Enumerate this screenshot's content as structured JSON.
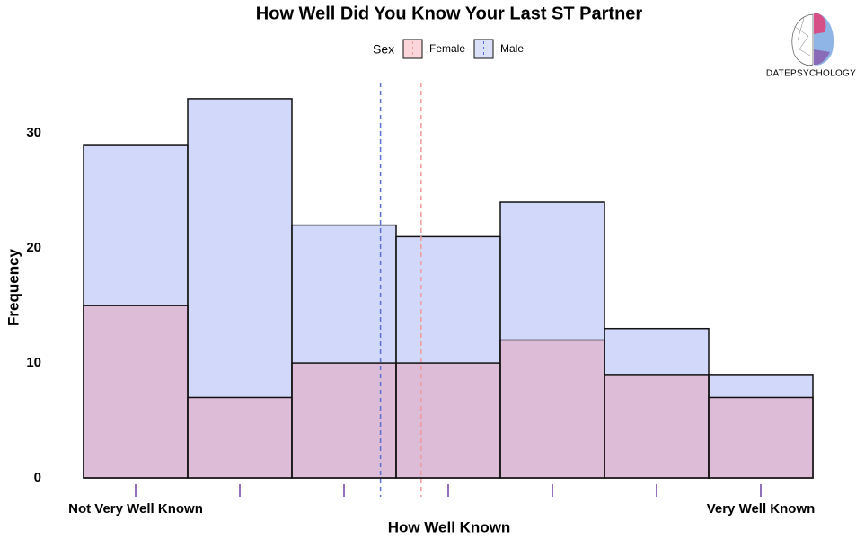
{
  "chart_data": {
    "type": "histogram",
    "title": "How Well Did You Know Your Last ST Partner",
    "x_label": "How Well Known",
    "y_label": "Frequency",
    "legend_title": "Sex",
    "legend_position": "top",
    "bins": [
      0.5,
      1.5,
      2.5,
      3.5,
      4.5,
      5.5,
      6.5,
      7.5
    ],
    "series": [
      {
        "name": "Female",
        "color": "#f08a96",
        "line_color": "#f09a9a",
        "values": [
          15,
          7,
          10,
          10,
          12,
          9,
          7
        ],
        "mean": 3.74
      },
      {
        "name": "Male",
        "color": "#9aa8f2",
        "line_color": "#5a70d0",
        "values": [
          29,
          33,
          22,
          21,
          24,
          13,
          9
        ],
        "mean": 3.35
      }
    ],
    "rug": [
      1,
      2,
      3,
      4,
      5,
      6,
      7
    ],
    "rug_color": "#9070b8",
    "xlim": [
      0.5,
      7.5
    ],
    "xticks": [
      {
        "value": 1,
        "label": "Not Very Well Known"
      },
      {
        "value": 7,
        "label": "Very Well Known"
      }
    ],
    "ylim": [
      0,
      34.4
    ],
    "yticks": [
      0,
      10,
      20,
      30
    ],
    "grid": false,
    "logo_text": "DATEPSYCHOLOGY"
  }
}
